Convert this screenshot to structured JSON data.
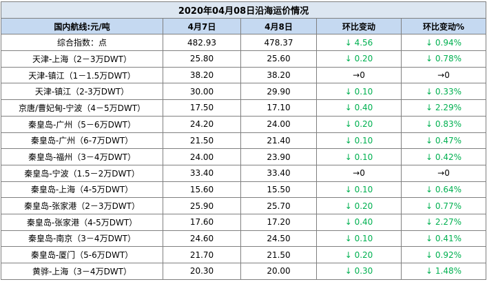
{
  "table": {
    "title": "2020年04月08日沿海运价情况",
    "header": [
      "国内航线:元/吨",
      "4月7日",
      "4月8日",
      "环比变动",
      "环比变动%"
    ],
    "rows": [
      [
        "综合指数：点",
        "482.93",
        "478.37",
        "↓ 4.56",
        "↓ 0.94%"
      ],
      [
        "天津-上海（2－3万DWT）",
        "25.80",
        "25.60",
        "↓ 0.20",
        "↓ 0.78%"
      ],
      [
        "天津-镇江（1－1.5万DWT）",
        "38.20",
        "38.20",
        "→0",
        "→0"
      ],
      [
        "天津-镇江（2-3万DWT）",
        "30.00",
        "29.90",
        "↓ 0.10",
        "↓ 0.33%"
      ],
      [
        "京唐/曹妃甸-宁波（4－5万DWT）",
        "17.50",
        "17.10",
        "↓ 0.40",
        "↓ 2.29%"
      ],
      [
        "秦皇岛-广州（5－6万DWT）",
        "24.20",
        "24.00",
        "↓ 0.20",
        "↓ 0.83%"
      ],
      [
        "秦皇岛-广州（6-7万DWT）",
        "21.50",
        "21.40",
        "↓ 0.10",
        "↓ 0.47%"
      ],
      [
        "秦皇岛-福州（3－4万DWT）",
        "24.00",
        "23.90",
        "↓ 0.10",
        "↓ 0.42%"
      ],
      [
        "秦皇岛-宁波（1.5－2万DWT）",
        "33.40",
        "33.40",
        "→0",
        "→0"
      ],
      [
        "秦皇岛-上海（4-5万DWT）",
        "15.60",
        "15.50",
        "↓ 0.10",
        "↓ 0.64%"
      ],
      [
        "秦皇岛-张家港（2－3万DWT）",
        "25.90",
        "25.70",
        "↓ 0.20",
        "↓ 0.77%"
      ],
      [
        "秦皇岛-张家港（4-5万DWT）",
        "17.60",
        "17.20",
        "↓ 0.40",
        "↓ 2.27%"
      ],
      [
        "秦皇岛-南京（3－4万DWT）",
        "24.60",
        "24.50",
        "↓ 0.10",
        "↓ 0.41%"
      ],
      [
        "秦皇岛-厦门（5-6万DWT）",
        "21.70",
        "21.50",
        "↓ 0.20",
        "↓ 0.92%"
      ],
      [
        "黄骅-上海（3－4万DWT）",
        "20.30",
        "20.00",
        "↓ 0.30",
        "↓ 1.48%"
      ]
    ],
    "change_colors": [
      "#00b050",
      "#00b050",
      "#000000",
      "#00b050",
      "#00b050",
      "#00b050",
      "#00b050",
      "#00b050",
      "#000000",
      "#00b050",
      "#00b050",
      "#00b050",
      "#00b050",
      "#00b050",
      "#00b050"
    ]
  }
}
